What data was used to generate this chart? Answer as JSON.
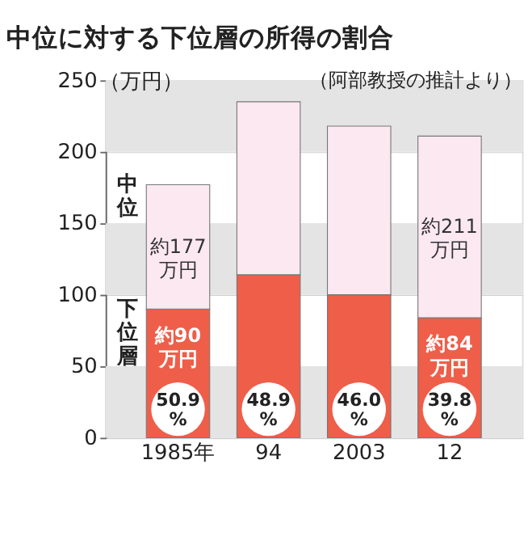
{
  "chart_data": {
    "type": "bar",
    "title": "中位に対する下位層の所得の割合",
    "subtitle": "（阿部教授の推計より）",
    "ylabel": "（万円）",
    "categories": [
      "1985年",
      "94",
      "2003",
      "12"
    ],
    "stacked": true,
    "series": [
      {
        "name": "下位層",
        "color": "#ee5e49",
        "values": [
          90,
          114,
          100,
          84
        ],
        "value_labels": [
          "約90万円",
          null,
          null,
          "約84万円"
        ]
      },
      {
        "name": "中位",
        "color": "#fce8f0",
        "values": [
          87,
          121,
          118,
          127
        ],
        "value_labels": [
          "約177万円",
          null,
          null,
          "約211万円"
        ]
      }
    ],
    "annotations": [
      {
        "text": "50.9%",
        "x": "1985年",
        "y": 20
      },
      {
        "text": "48.9%",
        "x": "94",
        "y": 20
      },
      {
        "text": "46.0%",
        "x": "2003",
        "y": 20
      },
      {
        "text": "39.8%",
        "x": "12",
        "y": 20
      }
    ],
    "ylim": [
      0,
      250
    ],
    "yticks": [
      0,
      50,
      100,
      150,
      200,
      250
    ],
    "grid": "y",
    "legend": false
  }
}
